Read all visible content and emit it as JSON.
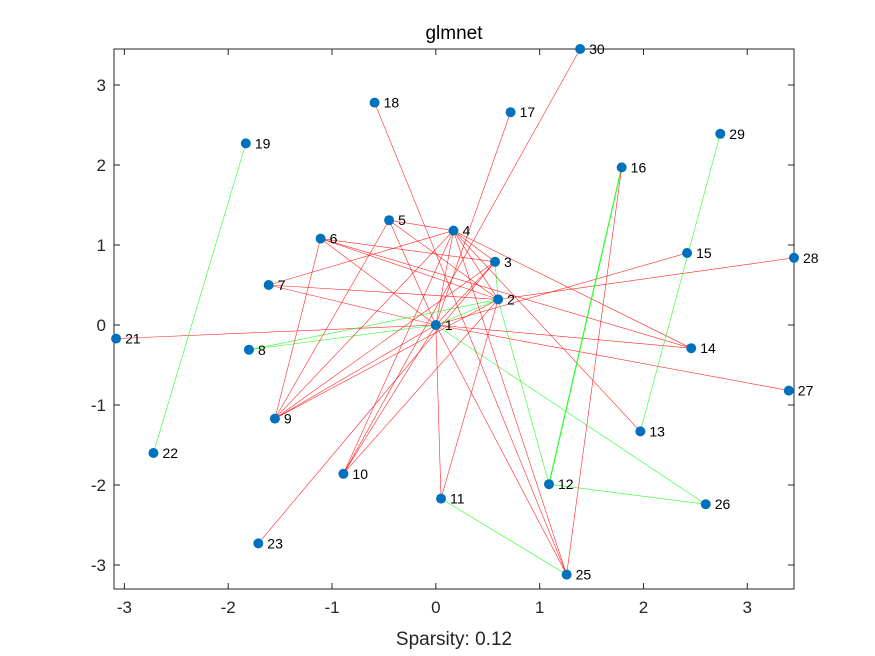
{
  "chart_data": {
    "type": "scatter",
    "title": "glmnet",
    "xlabel": "Sparsity: 0.12",
    "ylabel": "",
    "xlim": [
      -3.1,
      3.45
    ],
    "ylim": [
      -3.3,
      3.45
    ],
    "xticks": [
      -3,
      -2,
      -1,
      0,
      1,
      2,
      3
    ],
    "yticks": [
      -3,
      -2,
      -1,
      0,
      1,
      2,
      3
    ],
    "grid": false,
    "colors": {
      "node": "#0072BD",
      "positive_edge": "#00FF00",
      "negative_edge": "#FF0000",
      "axes": "#262626"
    },
    "nodes": [
      {
        "id": "1",
        "x": 0.0,
        "y": 0.0
      },
      {
        "id": "2",
        "x": 0.6,
        "y": 0.32
      },
      {
        "id": "3",
        "x": 0.57,
        "y": 0.79
      },
      {
        "id": "4",
        "x": 0.17,
        "y": 1.18
      },
      {
        "id": "5",
        "x": -0.45,
        "y": 1.31
      },
      {
        "id": "6",
        "x": -1.11,
        "y": 1.08
      },
      {
        "id": "7",
        "x": -1.61,
        "y": 0.5
      },
      {
        "id": "8",
        "x": -1.8,
        "y": -0.31
      },
      {
        "id": "9",
        "x": -1.55,
        "y": -1.17
      },
      {
        "id": "10",
        "x": -0.89,
        "y": -1.86
      },
      {
        "id": "11",
        "x": 0.05,
        "y": -2.17
      },
      {
        "id": "12",
        "x": 1.09,
        "y": -1.99
      },
      {
        "id": "13",
        "x": 1.97,
        "y": -1.33
      },
      {
        "id": "14",
        "x": 2.46,
        "y": -0.29
      },
      {
        "id": "15",
        "x": 2.42,
        "y": 0.9
      },
      {
        "id": "16",
        "x": 1.79,
        "y": 1.97
      },
      {
        "id": "17",
        "x": 0.72,
        "y": 2.66
      },
      {
        "id": "18",
        "x": -0.59,
        "y": 2.78
      },
      {
        "id": "19",
        "x": -1.83,
        "y": 2.27
      },
      {
        "id": "21",
        "x": -3.08,
        "y": -0.17
      },
      {
        "id": "22",
        "x": -2.72,
        "y": -1.6
      },
      {
        "id": "23",
        "x": -1.71,
        "y": -2.73
      },
      {
        "id": "25",
        "x": 1.26,
        "y": -3.12
      },
      {
        "id": "26",
        "x": 2.6,
        "y": -2.24
      },
      {
        "id": "27",
        "x": 3.4,
        "y": -0.82
      },
      {
        "id": "28",
        "x": 3.45,
        "y": 0.84
      },
      {
        "id": "29",
        "x": 2.74,
        "y": 2.39
      },
      {
        "id": "30",
        "x": 1.39,
        "y": 3.45
      }
    ],
    "edges": [
      {
        "from": "1",
        "to": "2",
        "sign": "positive",
        "weight": 1
      },
      {
        "from": "1",
        "to": "3",
        "sign": "negative",
        "weight": 1
      },
      {
        "from": "1",
        "to": "4",
        "sign": "negative",
        "weight": 1
      },
      {
        "from": "1",
        "to": "5",
        "sign": "negative",
        "weight": 1
      },
      {
        "from": "1",
        "to": "6",
        "sign": "negative",
        "weight": 1
      },
      {
        "from": "1",
        "to": "7",
        "sign": "negative",
        "weight": 1
      },
      {
        "from": "1",
        "to": "8",
        "sign": "positive",
        "weight": 1
      },
      {
        "from": "1",
        "to": "9",
        "sign": "negative",
        "weight": 1
      },
      {
        "from": "1",
        "to": "10",
        "sign": "negative",
        "weight": 1
      },
      {
        "from": "1",
        "to": "11",
        "sign": "negative",
        "weight": 1
      },
      {
        "from": "1",
        "to": "14",
        "sign": "negative",
        "weight": 1
      },
      {
        "from": "1",
        "to": "15",
        "sign": "negative",
        "weight": 1
      },
      {
        "from": "1",
        "to": "17",
        "sign": "negative",
        "weight": 1
      },
      {
        "from": "1",
        "to": "21",
        "sign": "negative",
        "weight": 1
      },
      {
        "from": "1",
        "to": "25",
        "sign": "negative",
        "weight": 1
      },
      {
        "from": "1",
        "to": "26",
        "sign": "positive",
        "weight": 1
      },
      {
        "from": "1",
        "to": "27",
        "sign": "negative",
        "weight": 1
      },
      {
        "from": "2",
        "to": "3",
        "sign": "positive",
        "weight": 1
      },
      {
        "from": "2",
        "to": "4",
        "sign": "negative",
        "weight": 1
      },
      {
        "from": "2",
        "to": "5",
        "sign": "negative",
        "weight": 1
      },
      {
        "from": "2",
        "to": "6",
        "sign": "negative",
        "weight": 1
      },
      {
        "from": "2",
        "to": "7",
        "sign": "negative",
        "weight": 1
      },
      {
        "from": "2",
        "to": "8",
        "sign": "positive",
        "weight": 1
      },
      {
        "from": "2",
        "to": "9",
        "sign": "negative",
        "weight": 1
      },
      {
        "from": "2",
        "to": "10",
        "sign": "negative",
        "weight": 1
      },
      {
        "from": "2",
        "to": "11",
        "sign": "negative",
        "weight": 1
      },
      {
        "from": "2",
        "to": "12",
        "sign": "positive",
        "weight": 1
      },
      {
        "from": "2",
        "to": "28",
        "sign": "negative",
        "weight": 1
      },
      {
        "from": "3",
        "to": "4",
        "sign": "negative",
        "weight": 1
      },
      {
        "from": "3",
        "to": "6",
        "sign": "negative",
        "weight": 1
      },
      {
        "from": "3",
        "to": "9",
        "sign": "negative",
        "weight": 1
      },
      {
        "from": "3",
        "to": "23",
        "sign": "negative",
        "weight": 1
      },
      {
        "from": "4",
        "to": "5",
        "sign": "negative",
        "weight": 1
      },
      {
        "from": "4",
        "to": "7",
        "sign": "negative",
        "weight": 1
      },
      {
        "from": "4",
        "to": "9",
        "sign": "negative",
        "weight": 1
      },
      {
        "from": "4",
        "to": "10",
        "sign": "negative",
        "weight": 1
      },
      {
        "from": "4",
        "to": "13",
        "sign": "negative",
        "weight": 1
      },
      {
        "from": "4",
        "to": "14",
        "sign": "negative",
        "weight": 1
      },
      {
        "from": "4",
        "to": "25",
        "sign": "negative",
        "weight": 1
      },
      {
        "from": "5",
        "to": "9",
        "sign": "negative",
        "weight": 1
      },
      {
        "from": "6",
        "to": "9",
        "sign": "negative",
        "weight": 1
      },
      {
        "from": "6",
        "to": "14",
        "sign": "negative",
        "weight": 1
      },
      {
        "from": "11",
        "to": "25",
        "sign": "positive",
        "weight": 1
      },
      {
        "from": "12",
        "to": "16",
        "sign": "positive",
        "weight": 2
      },
      {
        "from": "12",
        "to": "26",
        "sign": "positive",
        "weight": 1
      },
      {
        "from": "13",
        "to": "29",
        "sign": "positive",
        "weight": 1
      },
      {
        "from": "16",
        "to": "25",
        "sign": "negative",
        "weight": 1
      },
      {
        "from": "18",
        "to": "25",
        "sign": "negative",
        "weight": 1
      },
      {
        "from": "19",
        "to": "22",
        "sign": "positive",
        "weight": 1
      },
      {
        "from": "30",
        "to": "10",
        "sign": "negative",
        "weight": 1
      }
    ]
  }
}
